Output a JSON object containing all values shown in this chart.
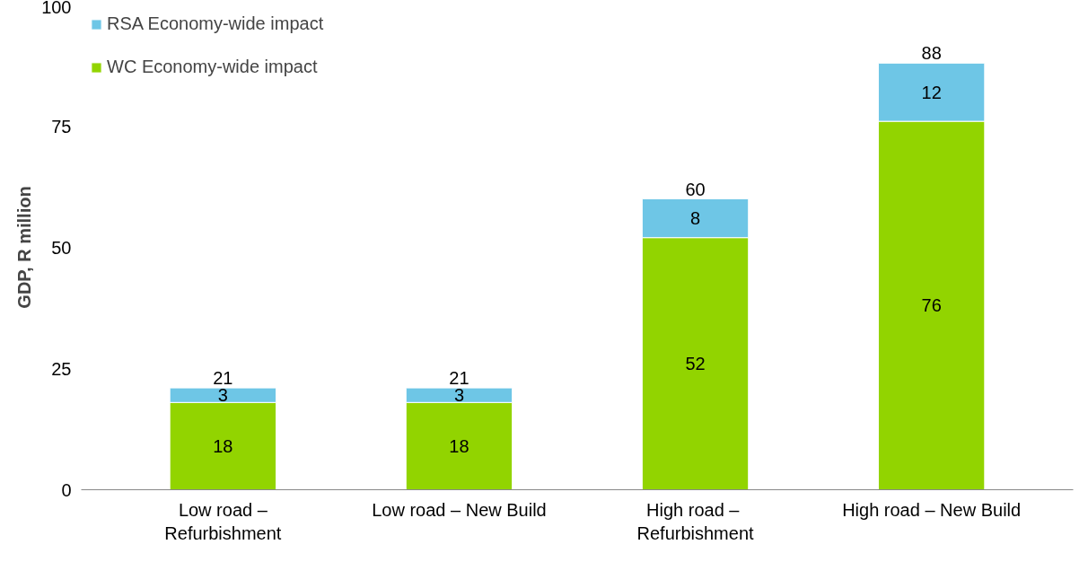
{
  "chart_data": {
    "type": "bar",
    "stacked": true,
    "ylabel": "GDP, R million",
    "categories": [
      "Low road – Refurbishment",
      "Low road – New Build",
      "High  road – Refurbishment",
      "High road – New Build"
    ],
    "series": [
      {
        "name": "WC Economy-wide impact",
        "color": "#92d400",
        "values": [
          18,
          18,
          52,
          76
        ]
      },
      {
        "name": "RSA Economy-wide impact",
        "color": "#6ec6e6",
        "values": [
          3,
          3,
          8,
          12
        ]
      }
    ],
    "totals": [
      "21",
      "21",
      "60",
      "88"
    ],
    "data_labels": true,
    "ylim": [
      0,
      100
    ],
    "yticks": [
      0,
      25,
      50,
      75,
      100
    ],
    "grid": false,
    "legend": "top left"
  }
}
